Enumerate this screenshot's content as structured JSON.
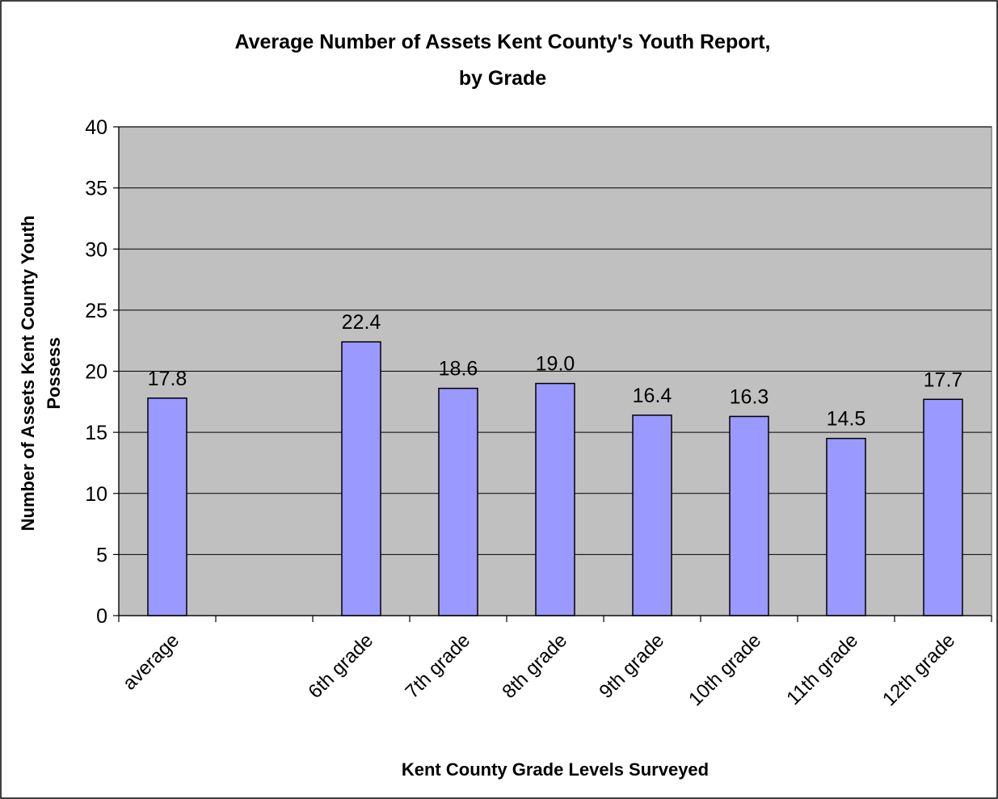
{
  "chart_data": {
    "type": "bar",
    "title_line1": "Average Number of Assets Kent County's Youth Report,",
    "title_line2": "by Grade",
    "xlabel": "Kent County Grade Levels Surveyed",
    "ylabel_line1": "Number of Assets Kent County Youth",
    "ylabel_line2": "Possess",
    "ylim": [
      0,
      40
    ],
    "yticks": [
      "0",
      "5",
      "10",
      "15",
      "20",
      "25",
      "30",
      "35",
      "40"
    ],
    "categories": [
      "average",
      "",
      "6th grade",
      "7th grade",
      "8th grade",
      "9th grade",
      "10th grade",
      "11th grade",
      "12th grade"
    ],
    "values": [
      17.8,
      null,
      22.4,
      18.6,
      19.0,
      16.4,
      16.3,
      14.5,
      17.7
    ],
    "data_labels": [
      "17.8",
      "",
      "22.4",
      "18.6",
      "19.0",
      "16.4",
      "16.3",
      "14.5",
      "17.7"
    ],
    "grid": true,
    "legend": "none",
    "colors": {
      "bar_fill": "#9999FF",
      "plot_background": "#C0C0C0",
      "gridline": "#000000"
    }
  }
}
